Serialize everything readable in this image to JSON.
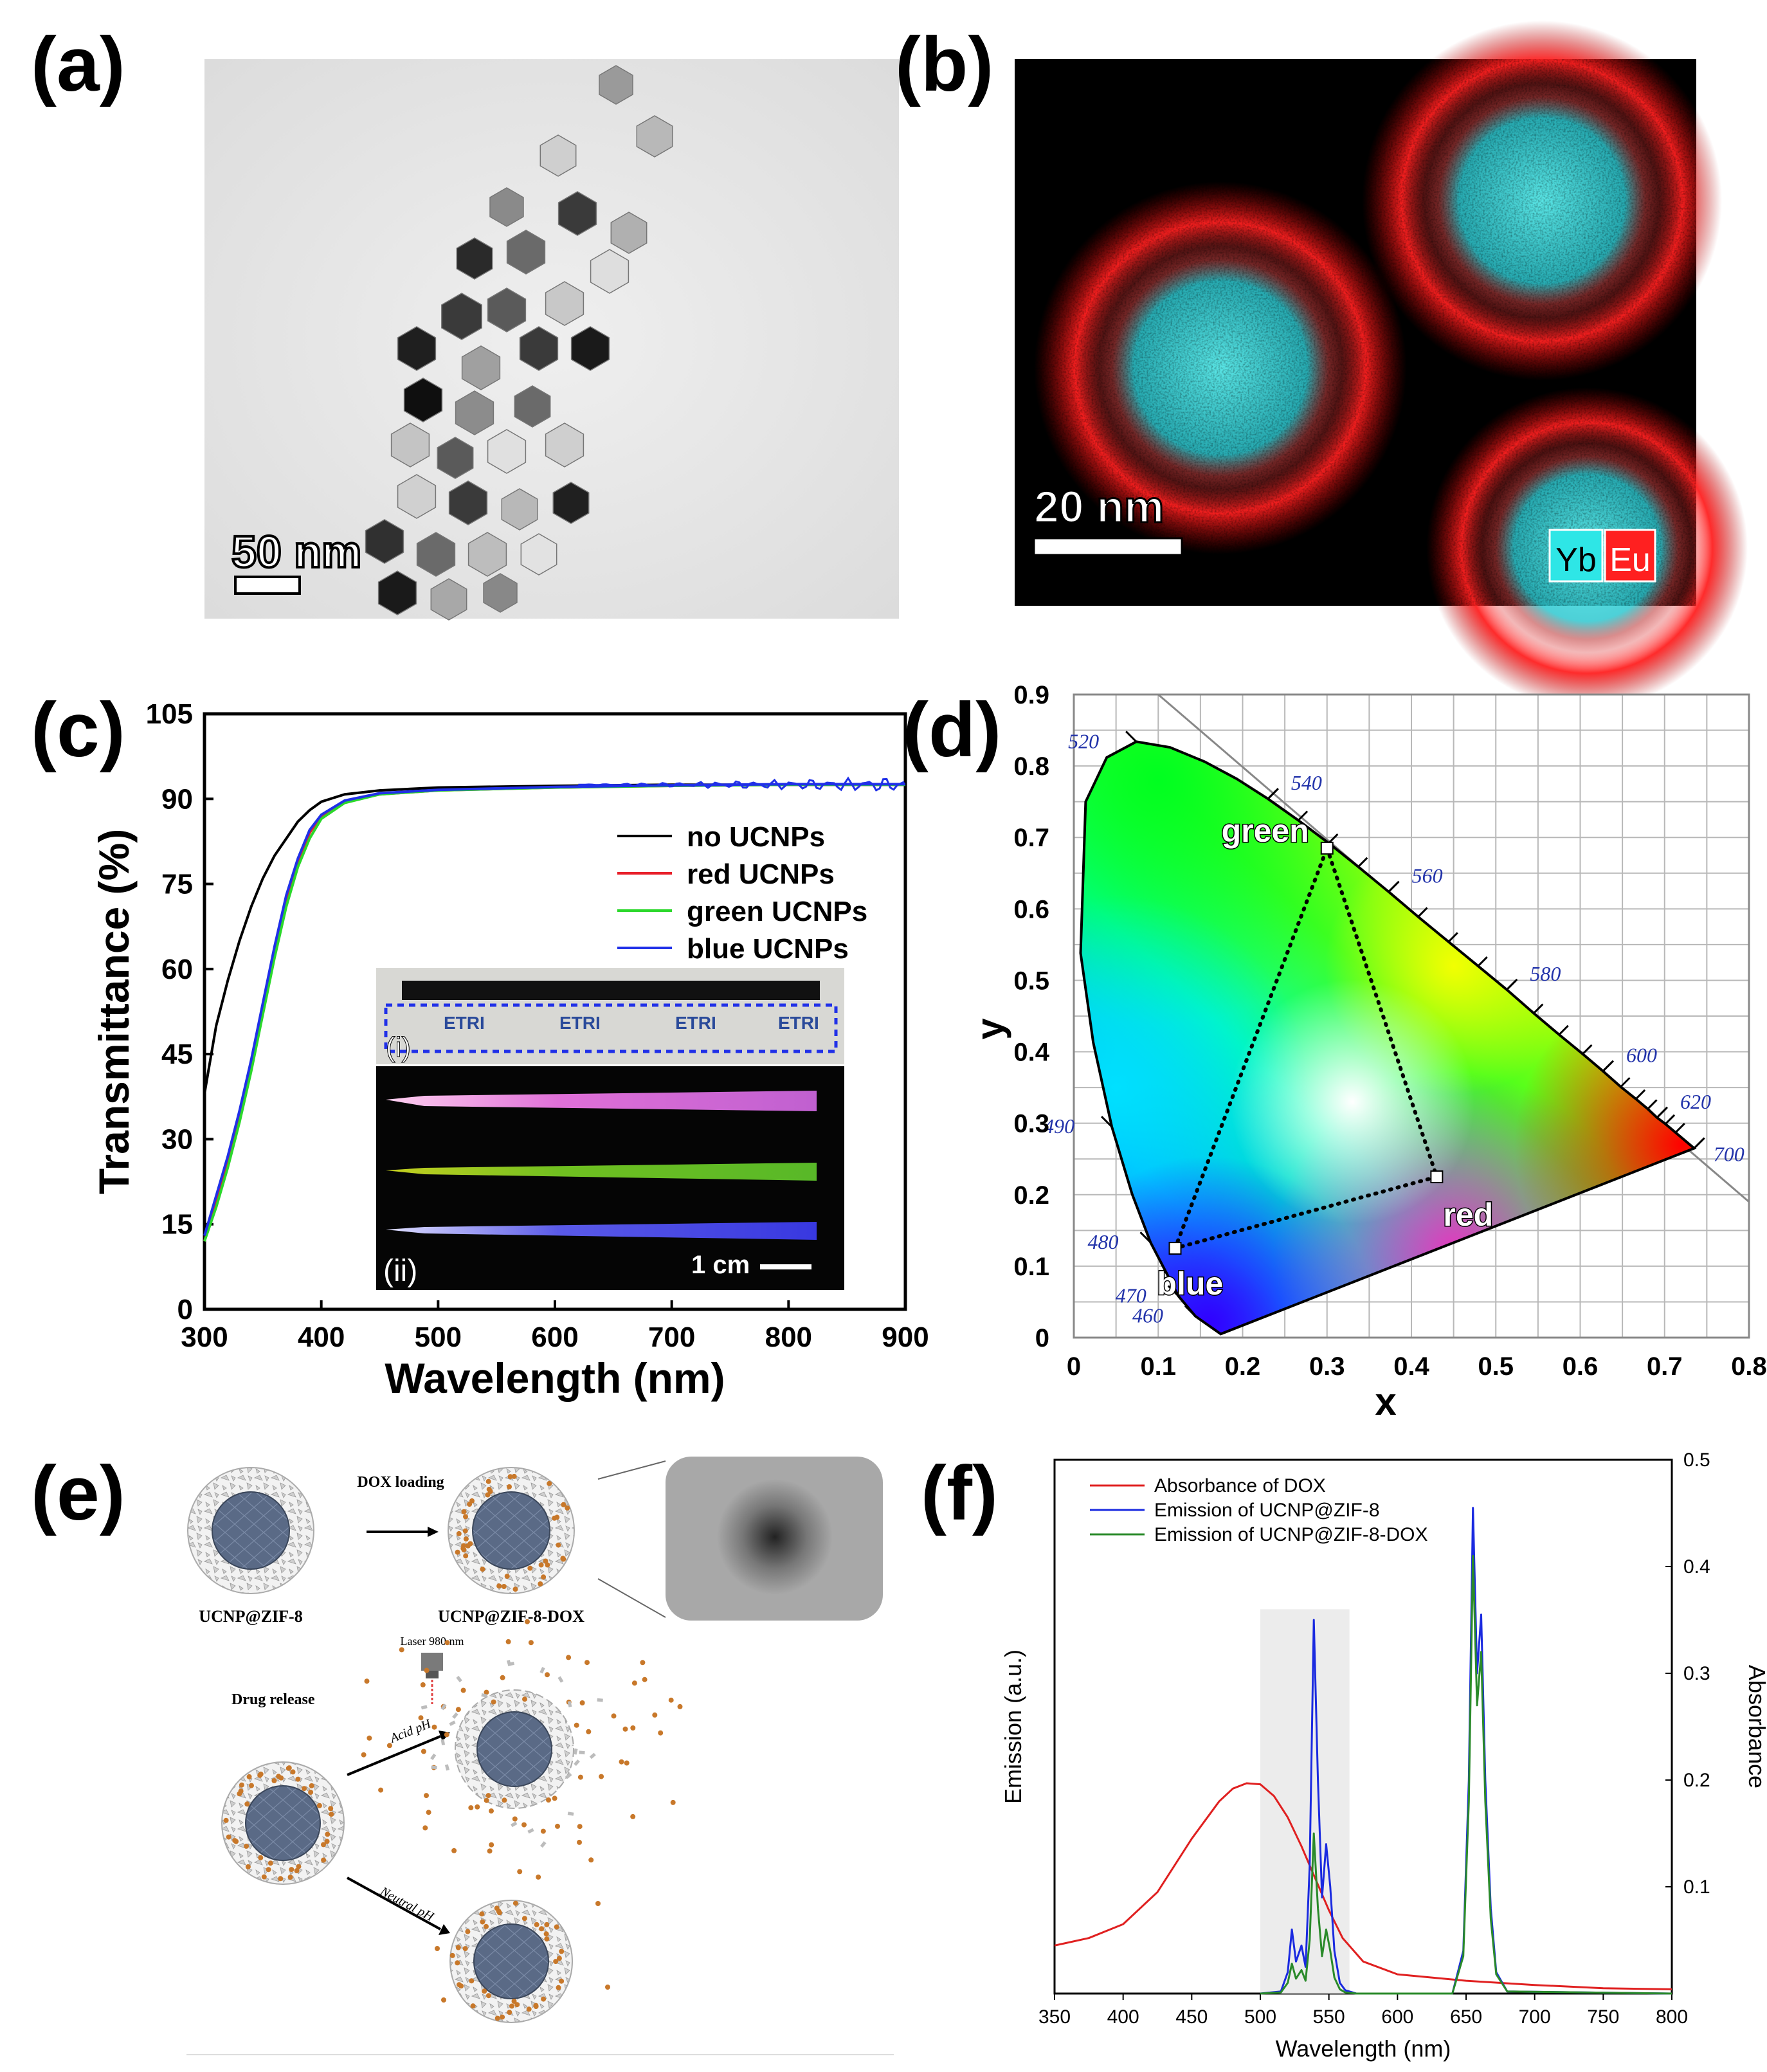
{
  "panels": {
    "a": {
      "letter": "(a)",
      "scale_label": "50 nm"
    },
    "b": {
      "letter": "(b)",
      "scale_label": "20 nm",
      "legend": [
        "Yb",
        "Eu"
      ]
    },
    "c": {
      "letter": "(c)"
    },
    "d": {
      "letter": "(d)"
    },
    "e": {
      "letter": "(e)",
      "labels": {
        "dox_loading": "DOX loading",
        "ucnp_zif8": "UCNP@ZIF-8",
        "ucnp_zif8_dox": "UCNP@ZIF-8-DOX",
        "laser": "Laser 980 nm",
        "drug_release": "Drug release",
        "acid": "Acid pH",
        "neutral": "Neutral pH"
      }
    },
    "f": {
      "letter": "(f)"
    }
  },
  "colors": {
    "black": "#000000",
    "red": "#e8202a",
    "green": "#2bd82b",
    "blue": "#2030e8",
    "cyan": "#2ee6e6",
    "eu_red": "#ff2020",
    "f_red": "#e02020",
    "f_blue": "#1a2ae0",
    "f_green": "#2a8a2a"
  },
  "chart_data": [
    {
      "id": "c",
      "type": "line",
      "xlabel": "Wavelength  (nm)",
      "ylabel": "Transmittance  (%)",
      "xlim": [
        300,
        900
      ],
      "ylim": [
        0,
        105
      ],
      "xticks": [
        300,
        400,
        500,
        600,
        700,
        800,
        900
      ],
      "yticks": [
        0,
        15,
        30,
        45,
        60,
        75,
        90,
        105
      ],
      "series": [
        {
          "name": "no UCNPs",
          "color": "#000000",
          "x": [
            300,
            310,
            320,
            330,
            340,
            350,
            360,
            370,
            380,
            390,
            400,
            420,
            450,
            500,
            600,
            700,
            800,
            900
          ],
          "y": [
            38,
            50,
            58,
            65,
            71,
            76,
            80,
            83,
            86,
            88,
            89.5,
            90.8,
            91.5,
            92,
            92.3,
            92.5,
            92.5,
            92.5
          ]
        },
        {
          "name": "red UCNPs",
          "color": "#e8202a",
          "x": [
            300,
            310,
            320,
            330,
            340,
            350,
            360,
            370,
            380,
            390,
            400,
            420,
            450,
            500,
            600,
            700,
            800,
            900
          ],
          "y": [
            12,
            19,
            26,
            34,
            43,
            53,
            63,
            72,
            79,
            84,
            87,
            89.5,
            90.8,
            91.5,
            92,
            92.3,
            92.5,
            92.5
          ]
        },
        {
          "name": "green UCNPs",
          "color": "#2bd82b",
          "x": [
            300,
            310,
            320,
            330,
            340,
            350,
            360,
            370,
            380,
            390,
            400,
            420,
            450,
            500,
            600,
            700,
            800,
            900
          ],
          "y": [
            12,
            18,
            25,
            33,
            42,
            52,
            62,
            71,
            78,
            83,
            86.5,
            89.3,
            90.8,
            91.5,
            92,
            92.3,
            92.5,
            92.5
          ]
        },
        {
          "name": "blue UCNPs",
          "color": "#2030e8",
          "x": [
            300,
            310,
            320,
            330,
            340,
            350,
            360,
            370,
            380,
            390,
            400,
            420,
            450,
            500,
            600,
            700,
            800,
            900
          ],
          "y": [
            13,
            20,
            27,
            35,
            44,
            54,
            64,
            73,
            79.5,
            84.5,
            87.2,
            89.7,
            91,
            91.6,
            92.1,
            92.4,
            92.6,
            92.6
          ]
        }
      ],
      "inset": {
        "label_i": "(i)",
        "label_ii": "(ii)",
        "scale": "1 cm",
        "logo_text": "ETRI"
      }
    },
    {
      "id": "d",
      "type": "scatter",
      "xlabel": "x",
      "ylabel": "y",
      "xlim": [
        0,
        0.8
      ],
      "ylim": [
        0,
        0.9
      ],
      "xticks": [
        0,
        0.1,
        0.2,
        0.3,
        0.4,
        0.5,
        0.6,
        0.7,
        0.8
      ],
      "yticks": [
        0,
        0.1,
        0.2,
        0.3,
        0.4,
        0.5,
        0.6,
        0.7,
        0.8,
        0.9
      ],
      "locus_wavelengths": [
        {
          "nm": "460",
          "x": 0.144,
          "y": 0.03
        },
        {
          "nm": "470",
          "x": 0.124,
          "y": 0.058
        },
        {
          "nm": "480",
          "x": 0.091,
          "y": 0.133
        },
        {
          "nm": "490",
          "x": 0.045,
          "y": 0.295
        },
        {
          "nm": "520",
          "x": 0.074,
          "y": 0.834
        },
        {
          "nm": "540",
          "x": 0.23,
          "y": 0.754
        },
        {
          "nm": "560",
          "x": 0.373,
          "y": 0.624
        },
        {
          "nm": "580",
          "x": 0.513,
          "y": 0.487
        },
        {
          "nm": "600",
          "x": 0.627,
          "y": 0.373
        },
        {
          "nm": "620",
          "x": 0.691,
          "y": 0.308
        },
        {
          "nm": "700",
          "x": 0.735,
          "y": 0.265
        }
      ],
      "points": [
        {
          "name": "green",
          "x": 0.3,
          "y": 0.685
        },
        {
          "name": "red",
          "x": 0.43,
          "y": 0.225
        },
        {
          "name": "blue",
          "x": 0.12,
          "y": 0.125
        }
      ]
    },
    {
      "id": "f",
      "type": "line",
      "xlabel": "Wavelength (nm)",
      "ylabel": "Emission (a.u.)",
      "y2label": "Absorbance",
      "xlim": [
        350,
        800
      ],
      "ylim2": [
        0,
        0.5
      ],
      "xticks": [
        350,
        400,
        450,
        500,
        550,
        600,
        650,
        700,
        750,
        800
      ],
      "y2ticks": [
        0.1,
        0.2,
        0.3,
        0.4,
        0.5
      ],
      "shaded_band": [
        500,
        565
      ],
      "series": [
        {
          "name": "Absorbance of DOX",
          "color": "#e02020",
          "x": [
            350,
            375,
            400,
            425,
            450,
            470,
            480,
            490,
            500,
            510,
            520,
            530,
            540,
            550,
            560,
            575,
            600,
            650,
            700,
            750,
            800
          ],
          "y": [
            0.045,
            0.052,
            0.065,
            0.095,
            0.145,
            0.18,
            0.192,
            0.197,
            0.196,
            0.185,
            0.165,
            0.138,
            0.108,
            0.078,
            0.052,
            0.03,
            0.018,
            0.012,
            0.008,
            0.005,
            0.004
          ]
        },
        {
          "name": "Emission of UCNP@ZIF-8",
          "color": "#1a2ae0",
          "x": [
            500,
            515,
            520,
            523,
            526,
            530,
            533,
            536,
            539,
            542,
            545,
            548,
            551,
            554,
            558,
            562,
            570,
            640,
            648,
            652,
            655,
            658,
            661,
            664,
            668,
            672,
            680,
            800
          ],
          "y": [
            0,
            0.002,
            0.02,
            0.06,
            0.03,
            0.045,
            0.025,
            0.12,
            0.35,
            0.2,
            0.09,
            0.14,
            0.1,
            0.04,
            0.01,
            0.003,
            0,
            0,
            0.04,
            0.2,
            0.455,
            0.3,
            0.355,
            0.2,
            0.08,
            0.02,
            0.002,
            0
          ]
        },
        {
          "name": "Emission of UCNP@ZIF-8-DOX",
          "color": "#2a8a2a",
          "x": [
            500,
            515,
            520,
            523,
            526,
            530,
            533,
            536,
            539,
            542,
            545,
            548,
            551,
            554,
            558,
            562,
            570,
            640,
            648,
            652,
            655,
            658,
            661,
            664,
            668,
            672,
            680,
            800
          ],
          "y": [
            0,
            0.001,
            0.01,
            0.028,
            0.014,
            0.022,
            0.012,
            0.05,
            0.15,
            0.08,
            0.035,
            0.06,
            0.04,
            0.015,
            0.004,
            0.001,
            0,
            0,
            0.035,
            0.18,
            0.41,
            0.27,
            0.32,
            0.18,
            0.07,
            0.018,
            0.002,
            0
          ]
        }
      ]
    }
  ]
}
